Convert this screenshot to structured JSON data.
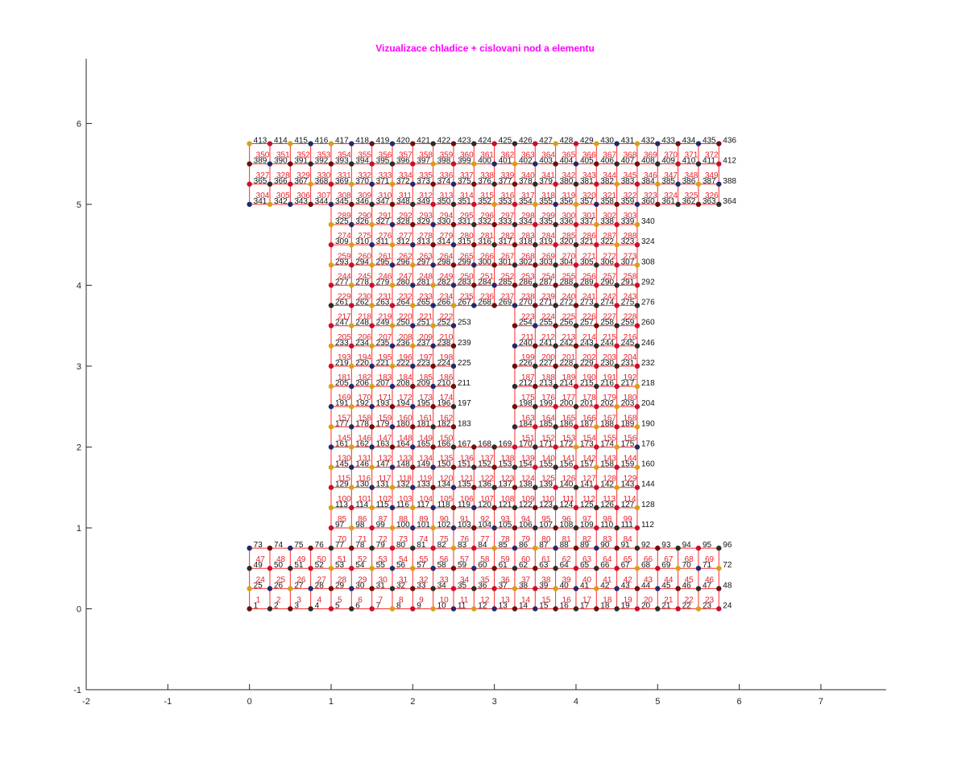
{
  "chart_data": {
    "type": "scatter",
    "title": "Vizualizace chladice + cislovani nod a elementu",
    "title_color": "#ff00ff",
    "xlabel": "",
    "ylabel": "",
    "xlim": [
      -2,
      7.8
    ],
    "ylim": [
      -1,
      6.8
    ],
    "xticks": [
      -2,
      -1,
      0,
      1,
      2,
      3,
      4,
      5,
      6,
      7
    ],
    "yticks": [
      -1,
      0,
      1,
      2,
      3,
      4,
      5,
      6
    ],
    "grid": false,
    "legend": "none",
    "mesh": {
      "spacing": 0.25,
      "edge_color": "#ff2a2a",
      "node_label_color": "#111111",
      "element_label_color": "#e8202a",
      "node_colors": [
        "#1f2a6b",
        "#c8102e",
        "#6b0f0f",
        "#d4a017",
        "#2b2b2b"
      ],
      "node_rows": [
        {
          "y": 0.0,
          "x_start": 0.0,
          "x_end": 5.75,
          "first_node": 1
        },
        {
          "y": 0.25,
          "x_start": 0.0,
          "x_end": 5.75,
          "first_node": 25
        },
        {
          "y": 0.5,
          "x_start": 0.0,
          "x_end": 5.75,
          "first_node": 49
        },
        {
          "y": 0.75,
          "x_start": 0.0,
          "x_end": 5.75,
          "first_node": 73
        },
        {
          "y": 1.0,
          "x_start": 1.0,
          "x_end": 4.75,
          "first_node": 97
        },
        {
          "y": 1.25,
          "x_start": 1.0,
          "x_end": 4.75,
          "first_node": 113
        },
        {
          "y": 1.5,
          "x_start": 1.0,
          "x_end": 4.75,
          "first_node": 129
        },
        {
          "y": 1.75,
          "x_start": 1.0,
          "x_end": 4.75,
          "first_node": 145
        },
        {
          "y": 2.0,
          "x_start": 1.0,
          "x_end": 4.75,
          "first_node": 161
        },
        {
          "y": 2.25,
          "x_start": 1.0,
          "x_end": 2.5,
          "first_node": 177
        },
        {
          "y": 2.25,
          "x_start": 3.25,
          "x_end": 4.75,
          "first_node": 184
        },
        {
          "y": 2.5,
          "x_start": 1.0,
          "x_end": 2.5,
          "first_node": 191
        },
        {
          "y": 2.5,
          "x_start": 3.25,
          "x_end": 4.75,
          "first_node": 198
        },
        {
          "y": 2.75,
          "x_start": 1.0,
          "x_end": 2.5,
          "first_node": 205
        },
        {
          "y": 2.75,
          "x_start": 3.25,
          "x_end": 4.75,
          "first_node": 212
        },
        {
          "y": 3.0,
          "x_start": 1.0,
          "x_end": 2.5,
          "first_node": 219
        },
        {
          "y": 3.0,
          "x_start": 3.25,
          "x_end": 4.75,
          "first_node": 226
        },
        {
          "y": 3.25,
          "x_start": 1.0,
          "x_end": 2.5,
          "first_node": 233
        },
        {
          "y": 3.25,
          "x_start": 3.25,
          "x_end": 4.75,
          "first_node": 240
        },
        {
          "y": 3.5,
          "x_start": 1.0,
          "x_end": 2.5,
          "first_node": 247
        },
        {
          "y": 3.5,
          "x_start": 3.25,
          "x_end": 4.75,
          "first_node": 254
        },
        {
          "y": 3.75,
          "x_start": 1.0,
          "x_end": 4.75,
          "first_node": 261
        },
        {
          "y": 4.0,
          "x_start": 1.0,
          "x_end": 4.75,
          "first_node": 277
        },
        {
          "y": 4.25,
          "x_start": 1.0,
          "x_end": 4.75,
          "first_node": 293
        },
        {
          "y": 4.5,
          "x_start": 1.0,
          "x_end": 4.75,
          "first_node": 309
        },
        {
          "y": 4.75,
          "x_start": 1.0,
          "x_end": 4.75,
          "first_node": 325
        },
        {
          "y": 5.0,
          "x_start": 0.0,
          "x_end": 5.75,
          "first_node": 341
        },
        {
          "y": 5.25,
          "x_start": 0.0,
          "x_end": 5.75,
          "first_node": 365
        },
        {
          "y": 5.5,
          "x_start": 0.0,
          "x_end": 5.75,
          "first_node": 389
        },
        {
          "y": 5.75,
          "x_start": 0.0,
          "x_end": 5.75,
          "first_node": 413
        }
      ],
      "element_rows": [
        {
          "y": 0.0,
          "x_start": 0.0,
          "x_end": 5.5,
          "first_element": 1
        },
        {
          "y": 0.25,
          "x_start": 0.0,
          "x_end": 5.5,
          "first_element": 24
        },
        {
          "y": 0.5,
          "x_start": 0.0,
          "x_end": 5.5,
          "first_element": 47
        },
        {
          "y": 0.75,
          "x_start": 1.0,
          "x_end": 4.5,
          "first_element": 70
        },
        {
          "y": 1.0,
          "x_start": 1.0,
          "x_end": 4.5,
          "first_element": 85
        },
        {
          "y": 1.25,
          "x_start": 1.0,
          "x_end": 4.5,
          "first_element": 100
        },
        {
          "y": 1.5,
          "x_start": 1.0,
          "x_end": 4.5,
          "first_element": 115
        },
        {
          "y": 1.75,
          "x_start": 1.0,
          "x_end": 4.5,
          "first_element": 130
        },
        {
          "y": 2.0,
          "x_start": 1.0,
          "x_end": 2.25,
          "first_element": 145
        },
        {
          "y": 2.0,
          "x_start": 3.25,
          "x_end": 4.5,
          "first_element": 151
        },
        {
          "y": 2.25,
          "x_start": 1.0,
          "x_end": 2.25,
          "first_element": 157
        },
        {
          "y": 2.25,
          "x_start": 3.25,
          "x_end": 4.5,
          "first_element": 163
        },
        {
          "y": 2.5,
          "x_start": 1.0,
          "x_end": 2.25,
          "first_element": 169
        },
        {
          "y": 2.5,
          "x_start": 3.25,
          "x_end": 4.5,
          "first_element": 175
        },
        {
          "y": 2.75,
          "x_start": 1.0,
          "x_end": 2.25,
          "first_element": 181
        },
        {
          "y": 2.75,
          "x_start": 3.25,
          "x_end": 4.5,
          "first_element": 187
        },
        {
          "y": 3.0,
          "x_start": 1.0,
          "x_end": 2.25,
          "first_element": 193
        },
        {
          "y": 3.0,
          "x_start": 3.25,
          "x_end": 4.5,
          "first_element": 199
        },
        {
          "y": 3.25,
          "x_start": 1.0,
          "x_end": 2.25,
          "first_element": 205
        },
        {
          "y": 3.25,
          "x_start": 3.25,
          "x_end": 4.5,
          "first_element": 211
        },
        {
          "y": 3.5,
          "x_start": 1.0,
          "x_end": 2.25,
          "first_element": 217
        },
        {
          "y": 3.5,
          "x_start": 3.25,
          "x_end": 4.5,
          "first_element": 223
        },
        {
          "y": 3.75,
          "x_start": 1.0,
          "x_end": 4.5,
          "first_element": 229
        },
        {
          "y": 4.0,
          "x_start": 1.0,
          "x_end": 4.5,
          "first_element": 244
        },
        {
          "y": 4.25,
          "x_start": 1.0,
          "x_end": 4.5,
          "first_element": 259
        },
        {
          "y": 4.5,
          "x_start": 1.0,
          "x_end": 4.5,
          "first_element": 274
        },
        {
          "y": 4.75,
          "x_start": 1.0,
          "x_end": 4.5,
          "first_element": 289
        },
        {
          "y": 5.0,
          "x_start": 0.0,
          "x_end": 5.5,
          "first_element": 304
        },
        {
          "y": 5.25,
          "x_start": 0.0,
          "x_end": 5.5,
          "first_element": 327
        },
        {
          "y": 5.5,
          "x_start": 0.0,
          "x_end": 5.5,
          "first_element": 350
        }
      ]
    }
  }
}
